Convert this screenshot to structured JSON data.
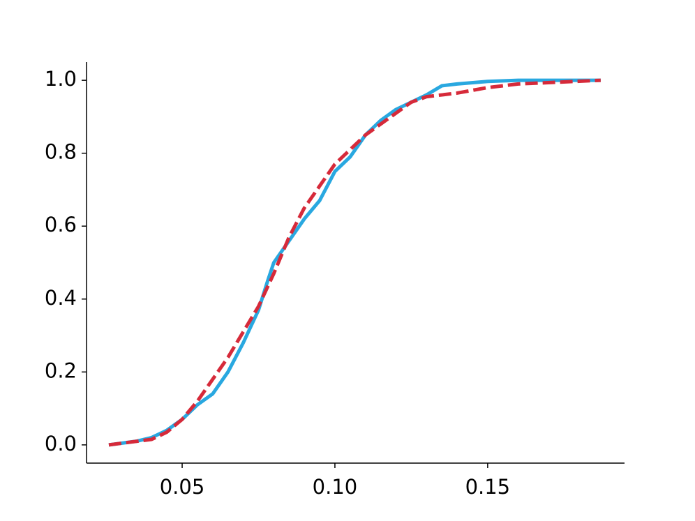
{
  "chart_data": {
    "type": "line",
    "xlim": [
      0.0187,
      0.1948
    ],
    "ylim": [
      -0.05,
      1.05
    ],
    "xticks": [
      0.05,
      {
        "value": 0.1,
        "label": "0.10"
      },
      0.15
    ],
    "yticks": [
      {
        "value": 0,
        "label": "0.0"
      },
      0.2,
      0.4,
      0.6,
      0.8,
      {
        "value": 1,
        "label": "1.0"
      }
    ],
    "grid": false,
    "series": [
      {
        "color": "#29a8e0",
        "dash": false,
        "x": [
          0.026,
          0.035,
          0.04,
          0.045,
          0.05,
          0.055,
          0.06,
          0.065,
          0.07,
          0.075,
          0.078,
          0.08,
          0.085,
          0.09,
          0.095,
          0.1,
          0.105,
          0.11,
          0.115,
          0.12,
          0.125,
          0.13,
          0.135,
          0.14,
          0.15,
          0.16,
          0.187
        ],
        "values": [
          0,
          0.01,
          0.02,
          0.04,
          0.07,
          0.11,
          0.14,
          0.2,
          0.28,
          0.37,
          0.45,
          0.5,
          0.56,
          0.62,
          0.67,
          0.75,
          0.79,
          0.85,
          0.89,
          0.92,
          0.94,
          0.96,
          0.985,
          0.99,
          0.997,
          1.0,
          1.0
        ]
      },
      {
        "color": "#d62a3a",
        "dash": true,
        "x": [
          0.026,
          0.04,
          0.045,
          0.05,
          0.055,
          0.06,
          0.065,
          0.07,
          0.075,
          0.08,
          0.085,
          0.09,
          0.095,
          0.1,
          0.105,
          0.11,
          0.115,
          0.12,
          0.125,
          0.13,
          0.14,
          0.15,
          0.16,
          0.187
        ],
        "values": [
          0,
          0.015,
          0.035,
          0.07,
          0.12,
          0.18,
          0.24,
          0.31,
          0.38,
          0.47,
          0.57,
          0.65,
          0.71,
          0.77,
          0.81,
          0.85,
          0.88,
          0.91,
          0.94,
          0.955,
          0.965,
          0.98,
          0.99,
          1.0
        ]
      }
    ]
  }
}
